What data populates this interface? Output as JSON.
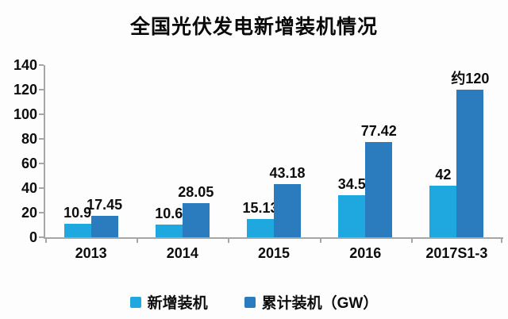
{
  "chart_data": {
    "type": "bar",
    "title": "全国光伏发电新增装机情况",
    "categories": [
      "2013",
      "2014",
      "2015",
      "2016",
      "2017S1-3"
    ],
    "series": [
      {
        "name": "新增装机",
        "color": "#1FA8E0",
        "values": [
          10.9,
          10.6,
          15.13,
          34.5,
          42
        ],
        "labels": [
          "10.9",
          "10.6",
          "15.13",
          "34.5",
          "42"
        ]
      },
      {
        "name": "累计装机（GW）",
        "color": "#2B7CBF",
        "values": [
          17.45,
          28.05,
          43.18,
          77.42,
          120
        ],
        "labels": [
          "17.45",
          "28.05",
          "43.18",
          "77.42",
          "约120"
        ]
      }
    ],
    "xlabel": "",
    "ylabel": "",
    "ylim": [
      0,
      140
    ],
    "yticks": [
      0,
      20,
      40,
      60,
      80,
      100,
      120,
      140
    ],
    "grid": false,
    "legend_position": "bottom",
    "text_color": "#0D0D0D",
    "axis_color": "#A6A6A6",
    "background_color": "#FDFDFD"
  }
}
